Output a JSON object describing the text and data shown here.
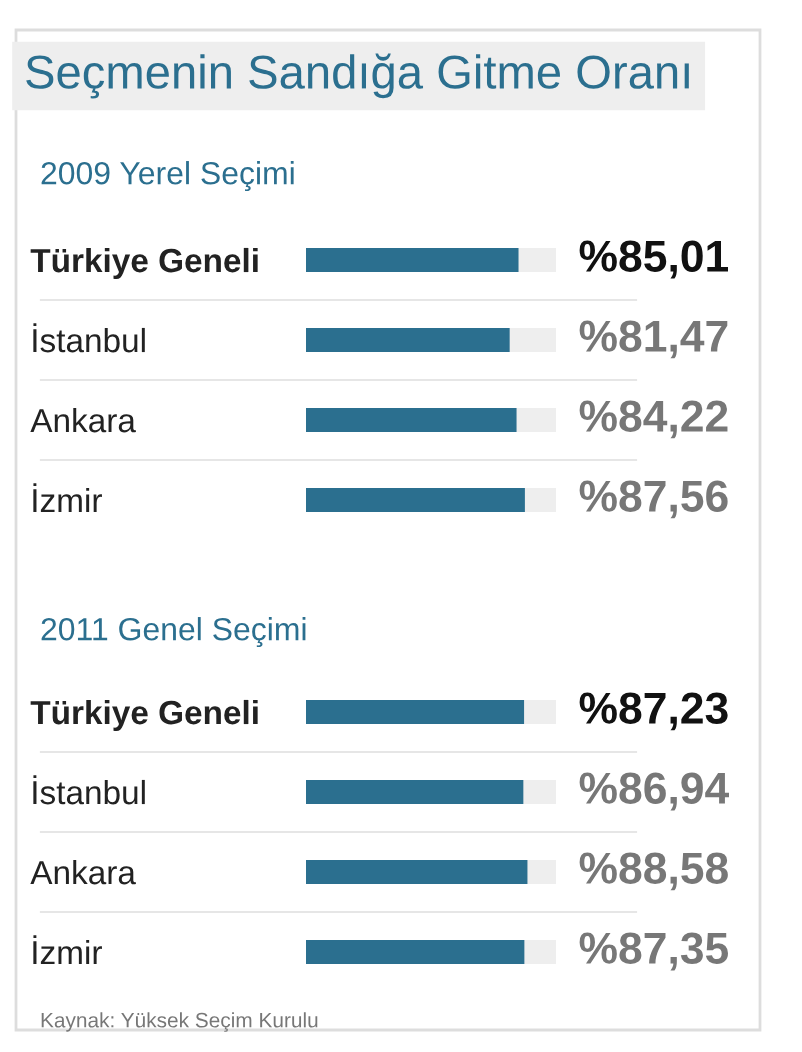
{
  "chart_data": [
    {
      "type": "bar",
      "orientation": "horizontal",
      "title": "Seçmenin Sandığa Gitme Oranı",
      "subtitle": "2009 Yerel Seçimi",
      "categories": [
        "Türkiye Geneli",
        "İstanbul",
        "Ankara",
        "İzmir"
      ],
      "values": [
        85.01,
        81.47,
        84.22,
        87.56
      ],
      "color": "#2b6f8f",
      "value_labels": [
        "%85,01",
        "%81,47",
        "%84,22",
        "%87,56"
      ],
      "xlim": [
        0,
        100
      ],
      "tick_labels": "y"
    },
    {
      "type": "bar",
      "orientation": "horizontal",
      "title": "2011 Genel Seçimi",
      "categories": [
        "Türkiye Geneli",
        "İstanbul",
        "Ankara",
        "İzmir"
      ],
      "values": [
        87.23,
        86.94,
        88.58,
        87.35
      ],
      "color": "#2b6f8f",
      "value_labels": [
        "%87,23",
        "%86,94",
        "%88,58",
        "%87,35"
      ],
      "xlim": [
        0,
        100
      ],
      "tick_labels": "y",
      "annotations": [
        "Kaynak: Yüksek Seçim Kurulu"
      ]
    }
  ]
}
